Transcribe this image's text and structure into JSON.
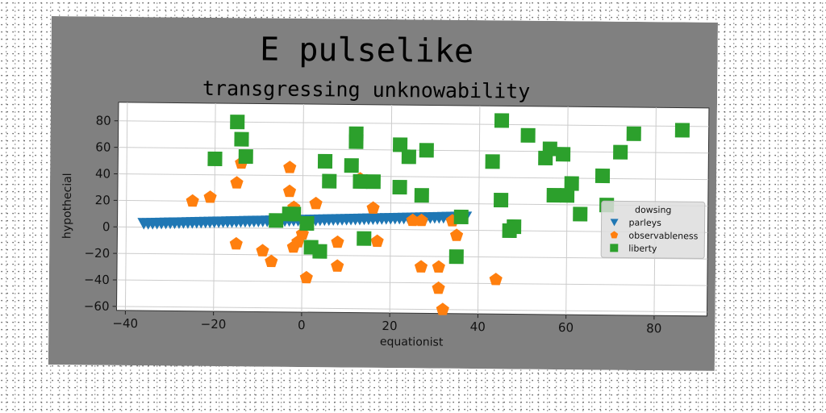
{
  "chart_data": {
    "type": "scatter",
    "title": "E pulselike",
    "subtitle": "transgressing unknowability",
    "xlabel": "equationist",
    "ylabel": "hypothecial",
    "xlim": [
      -42,
      92
    ],
    "ylim": [
      -63,
      94
    ],
    "xticks": [
      -40,
      -20,
      0,
      20,
      40,
      60,
      80
    ],
    "yticks": [
      -60,
      -40,
      -20,
      0,
      20,
      40,
      60,
      80
    ],
    "grid": true,
    "legend": {
      "title": "dowsing",
      "position": "center-right"
    },
    "colors": {
      "figure_bg": "#808080",
      "plot_bg": "#ffffff",
      "grid": "#cccccc"
    },
    "series": [
      {
        "name": "parleys",
        "marker": "triangle-down",
        "color": "#1f77b4",
        "x": [
          -36,
          -35,
          -34,
          -33,
          -32,
          -31,
          -30,
          -29,
          -28,
          -27,
          -26,
          -25,
          -24,
          -23,
          -22,
          -21,
          -20,
          -19,
          -18,
          -17,
          -16,
          -15,
          -14,
          -13,
          -12,
          -11,
          -10,
          -9,
          -8,
          -7,
          -6,
          -5,
          -4,
          -3,
          -2,
          -1,
          0,
          1,
          2,
          3,
          4,
          5,
          6,
          7,
          8,
          9,
          10,
          11,
          12,
          13,
          14,
          15,
          16,
          17,
          18,
          19,
          20,
          21,
          22,
          23,
          24,
          25,
          26,
          27,
          28,
          29,
          30,
          31,
          32,
          33,
          34,
          35,
          36,
          37
        ],
        "y": [
          3,
          3,
          3.1,
          3.2,
          3.3,
          3.4,
          3.5,
          3.6,
          3.7,
          3.8,
          3.9,
          4,
          4.1,
          4.2,
          4.3,
          4.4,
          4.5,
          4.6,
          4.7,
          4.8,
          4.9,
          5,
          5.1,
          5.2,
          5.3,
          5.4,
          5.5,
          5.6,
          5.7,
          5.8,
          5.9,
          6,
          6.1,
          6.2,
          6.3,
          6.4,
          6.5,
          6.6,
          6.7,
          6.8,
          6.9,
          7,
          7.1,
          7.2,
          7.3,
          7.4,
          7.5,
          7.6,
          7.7,
          7.8,
          7.9,
          8,
          8.1,
          8.2,
          8.3,
          8.4,
          8.5,
          8.6,
          8.7,
          8.8,
          8.9,
          9,
          9.1,
          9.2,
          9.3,
          9.4,
          9.5,
          9.6,
          9.7,
          9.8,
          9.9,
          10,
          10.1,
          10.2
        ]
      },
      {
        "name": "observableness",
        "marker": "pentagon",
        "color": "#ff7f0e",
        "x": [
          -25,
          -21,
          -15,
          -14,
          -15,
          -9,
          -7,
          -3,
          -3,
          -2,
          -2,
          -1,
          0,
          1,
          3,
          8,
          8,
          13,
          16,
          17,
          25,
          27,
          27,
          31,
          31,
          32,
          34,
          35,
          44
        ],
        "y": [
          20,
          23,
          34,
          49,
          -12,
          -17,
          -25,
          46,
          28,
          16,
          -14,
          -10,
          -4,
          -37,
          19,
          -10,
          -28,
          38,
          16,
          -9,
          7,
          -28,
          7,
          -44,
          -28,
          -60,
          7,
          -4,
          -37
        ]
      },
      {
        "name": "liberty",
        "marker": "square",
        "color": "#2ca02c",
        "x": [
          -20,
          -15,
          -14,
          -13,
          -6,
          -3,
          -2,
          1,
          2,
          4,
          5,
          6,
          11,
          12,
          12,
          13,
          14,
          16,
          22,
          22,
          24,
          27,
          28,
          35,
          36,
          43,
          45,
          45,
          47,
          48,
          51,
          55,
          56,
          57,
          59,
          60,
          61,
          63,
          68,
          69,
          72,
          75,
          86
        ],
        "y": [
          52,
          80,
          67,
          54,
          6,
          11,
          11,
          4,
          -14,
          -17,
          51,
          36,
          48,
          72,
          66,
          36,
          -7,
          36,
          64,
          32,
          55,
          26,
          60,
          -20,
          10,
          52,
          23,
          83,
          0,
          3,
          72,
          55,
          62,
          27,
          58,
          27,
          36,
          13,
          42,
          20,
          60,
          74,
          77
        ]
      }
    ]
  }
}
